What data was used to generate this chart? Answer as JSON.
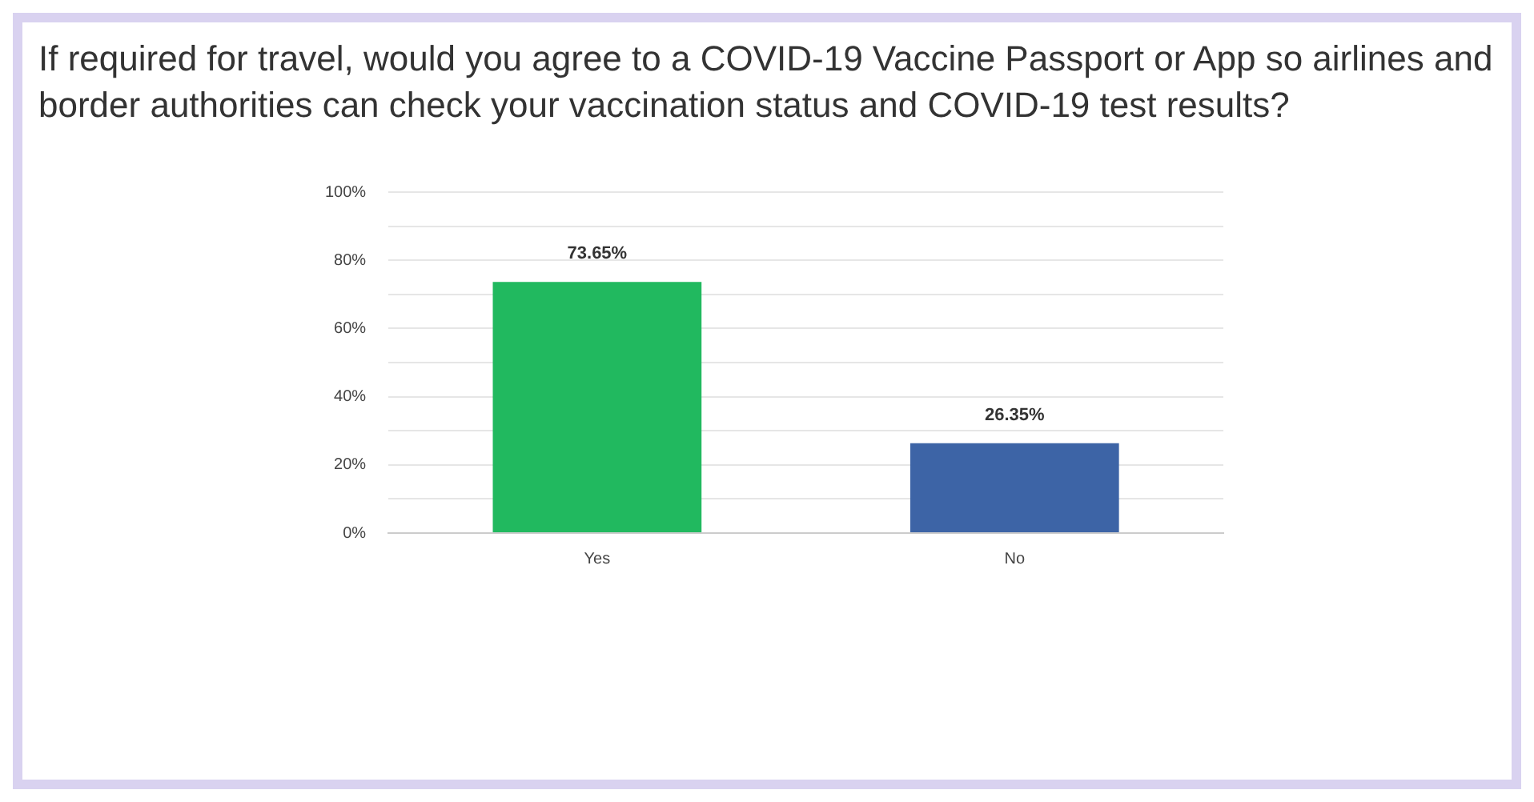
{
  "chart_data": {
    "type": "bar",
    "title": "If required for travel, would you agree to a COVID-19 Vaccine Passport or App so airlines and border authorities can check your vaccination status and COVID-19 test results?",
    "categories": [
      "Yes",
      "No"
    ],
    "values": [
      73.65,
      26.35
    ],
    "colors": [
      "#21b95f",
      "#3d64a6"
    ],
    "value_labels": [
      "73.65%",
      "26.35%"
    ],
    "ylim": [
      0,
      100
    ],
    "yticks": [
      {
        "value": 0,
        "label": "0%"
      },
      {
        "value": 10,
        "label": null
      },
      {
        "value": 20,
        "label": "20%"
      },
      {
        "value": 30,
        "label": null
      },
      {
        "value": 40,
        "label": "40%"
      },
      {
        "value": 50,
        "label": null
      },
      {
        "value": 60,
        "label": "60%"
      },
      {
        "value": 70,
        "label": null
      },
      {
        "value": 80,
        "label": "80%"
      },
      {
        "value": 90,
        "label": null
      },
      {
        "value": 100,
        "label": "100%"
      }
    ],
    "grid": "y"
  }
}
